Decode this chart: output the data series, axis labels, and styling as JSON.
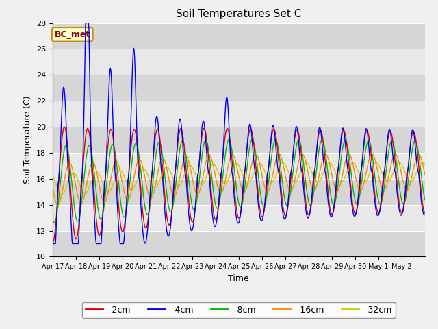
{
  "title": "Soil Temperatures Set C",
  "xlabel": "Time",
  "ylabel": "Soil Temperature (C)",
  "ylim": [
    10,
    28
  ],
  "yticks": [
    10,
    12,
    14,
    16,
    18,
    20,
    22,
    24,
    26,
    28
  ],
  "annotation": "BC_met",
  "legend_labels": [
    "-2cm",
    "-4cm",
    "-8cm",
    "-16cm",
    "-32cm"
  ],
  "legend_colors": [
    "#dd0000",
    "#0000ee",
    "#00bb00",
    "#ff8800",
    "#cccc00"
  ],
  "tick_labels": [
    "Apr 17",
    "Apr 18",
    "Apr 19",
    "Apr 20",
    "Apr 21",
    "Apr 22",
    "Apr 23",
    "Apr 24",
    "Apr 25",
    "Apr 26",
    "Apr 27",
    "Apr 28",
    "Apr 29",
    "Apr 30",
    "May 1",
    "May 2"
  ],
  "fig_bg": "#f0f0f0",
  "ax_bg": "#e8e8e8",
  "band_color": "#d0d0d0",
  "figsize": [
    6.4,
    4.8
  ],
  "dpi": 100
}
